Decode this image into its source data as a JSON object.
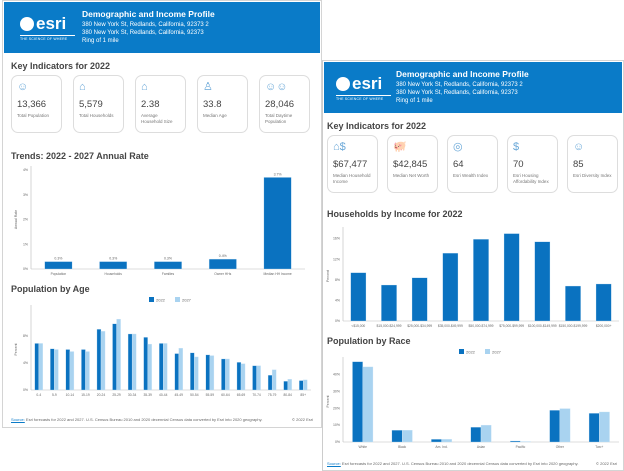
{
  "report": {
    "title": "Demographic and Income Profile",
    "address1": "380 New York St, Redlands, California, 92373 2",
    "address2": "380 New York St, Redlands, California, 92373",
    "ring": "Ring of 1 mile",
    "logo_text": "esri",
    "logo_tagline": "THE SCIENCE OF WHERE"
  },
  "colors": {
    "brand": "#0a7bc8",
    "series2022": "#0a72c0",
    "series2027": "#a9d3f0"
  },
  "left": {
    "key_title": "Key Indicators for 2022",
    "cards": [
      {
        "icon": "people-icon",
        "glyph": "☺",
        "value": "13,366",
        "label": "Total Population"
      },
      {
        "icon": "house-icon",
        "glyph": "⌂",
        "value": "5,579",
        "label": "Total Households"
      },
      {
        "icon": "family-house-icon",
        "glyph": "⌂",
        "value": "2.38",
        "label": "Average Household Size"
      },
      {
        "icon": "median-age-icon",
        "glyph": "♙",
        "value": "33.8",
        "label": "Median Age"
      },
      {
        "icon": "crowd-icon",
        "glyph": "☺☺",
        "value": "28,046",
        "label": "Total Daytime Population"
      }
    ],
    "trends_title": "Trends: 2022 - 2027 Annual Rate",
    "age_title": "Population by Age",
    "source_label": "Source:",
    "source": "Esri forecasts for 2022 and 2027. U.S. Census Bureau 2010 and 2020 decennial Census data converted by Esri into 2020 geography.",
    "copyright": "© 2022 Esri"
  },
  "right": {
    "key_title": "Key Indicators for 2022",
    "cards": [
      {
        "icon": "money-house-icon",
        "glyph": "⌂$",
        "value": "$67,477",
        "label": "Median Household Income"
      },
      {
        "icon": "piggy-bank-icon",
        "glyph": "🐖",
        "value": "$42,845",
        "label": "Median Net Worth"
      },
      {
        "icon": "coins-icon",
        "glyph": "◎",
        "value": "64",
        "label": "Esri Wealth Index"
      },
      {
        "icon": "house-dollar-icon",
        "glyph": "$",
        "value": "70",
        "label": "Esri Housing Affordability Index"
      },
      {
        "icon": "diversity-icon",
        "glyph": "☺",
        "value": "85",
        "label": "Esri Diversity Index"
      }
    ],
    "income_title": "Households by Income for 2022",
    "race_title": "Population by Race",
    "source_label": "Source:",
    "source": "Esri forecasts for 2022 and 2027. U.S. Census Bureau 2010 and 2020 decennial Census data converted by Esri into 2020 geography.",
    "copyright": "© 2022 Esri"
  },
  "chart_data": [
    {
      "id": "trends",
      "type": "bar",
      "ylabel": "Annual Rate",
      "ylim": [
        0,
        4
      ],
      "yticks": [
        "0%",
        "1%",
        "2%",
        "3%",
        "4%"
      ],
      "grid": false,
      "categories": [
        "Population",
        "Households",
        "Families",
        "Owner HHs",
        "Median HH Income"
      ],
      "series": [
        {
          "values": [
            0.3,
            0.3,
            0.3,
            0.4,
            3.7
          ],
          "labels": [
            "0.3%",
            "0.3%",
            "0.3%",
            "0.4%",
            "3.7%"
          ]
        }
      ]
    },
    {
      "id": "age",
      "type": "bar",
      "ylabel": "Percent",
      "ylim": [
        0,
        12
      ],
      "yticks": [
        "0%",
        "4%",
        "8%"
      ],
      "yticks_values": [
        0,
        4,
        8
      ],
      "grid": false,
      "legend": "top-center",
      "categories": [
        "0-4",
        "5-9",
        "10-14",
        "15-19",
        "20-24",
        "25-29",
        "30-34",
        "35-39",
        "40-44",
        "45-49",
        "50-54",
        "55-59",
        "60-64",
        "65-69",
        "70-74",
        "75-79",
        "80-84",
        "85+"
      ],
      "series": [
        {
          "name": "2022",
          "values": [
            6.9,
            6.1,
            6.0,
            6.0,
            9.0,
            9.8,
            8.3,
            7.8,
            6.9,
            5.4,
            5.5,
            5.2,
            4.6,
            4.1,
            3.6,
            2.2,
            1.3,
            1.4
          ]
        },
        {
          "name": "2027",
          "values": [
            6.9,
            6.0,
            5.7,
            5.7,
            8.7,
            10.5,
            8.3,
            6.8,
            6.9,
            6.2,
            4.9,
            5.1,
            4.6,
            3.9,
            3.6,
            3.0,
            1.6,
            1.5
          ]
        }
      ]
    },
    {
      "id": "income",
      "type": "bar",
      "ylabel": "Percent",
      "ylim": [
        0,
        17.5
      ],
      "yticks": [
        "0%",
        "4%",
        "8%",
        "12%",
        "16%"
      ],
      "yticks_values": [
        0,
        4,
        8,
        12,
        16
      ],
      "grid": false,
      "categories": [
        "<$15,000",
        "$15,000-$24,999",
        "$25,000-$34,999",
        "$35,000-$49,999",
        "$50,000-$74,999",
        "$75,000-$99,999",
        "$100,000-$149,999",
        "$150,000-$199,999",
        "$200,000+"
      ],
      "series": [
        {
          "values": [
            9.4,
            7.0,
            8.4,
            13.2,
            15.9,
            17.0,
            15.4,
            6.8,
            7.2
          ]
        }
      ]
    },
    {
      "id": "race",
      "type": "bar",
      "ylabel": "Percent",
      "ylim": [
        0,
        48
      ],
      "yticks": [
        "0%",
        "10%",
        "20%",
        "30%",
        "40%"
      ],
      "yticks_values": [
        0,
        10,
        20,
        30,
        40
      ],
      "grid": false,
      "legend": "top-center",
      "categories": [
        "White",
        "Black",
        "Am. Ind.",
        "Asian",
        "Pacific",
        "Other",
        "Two+"
      ],
      "series": [
        {
          "name": "2022",
          "values": [
            47.6,
            7.0,
            1.6,
            8.8,
            0.6,
            18.8,
            17.0
          ]
        },
        {
          "name": "2027",
          "values": [
            44.5,
            7.0,
            1.6,
            10.0,
            0.3,
            19.8,
            17.8
          ]
        }
      ]
    }
  ]
}
